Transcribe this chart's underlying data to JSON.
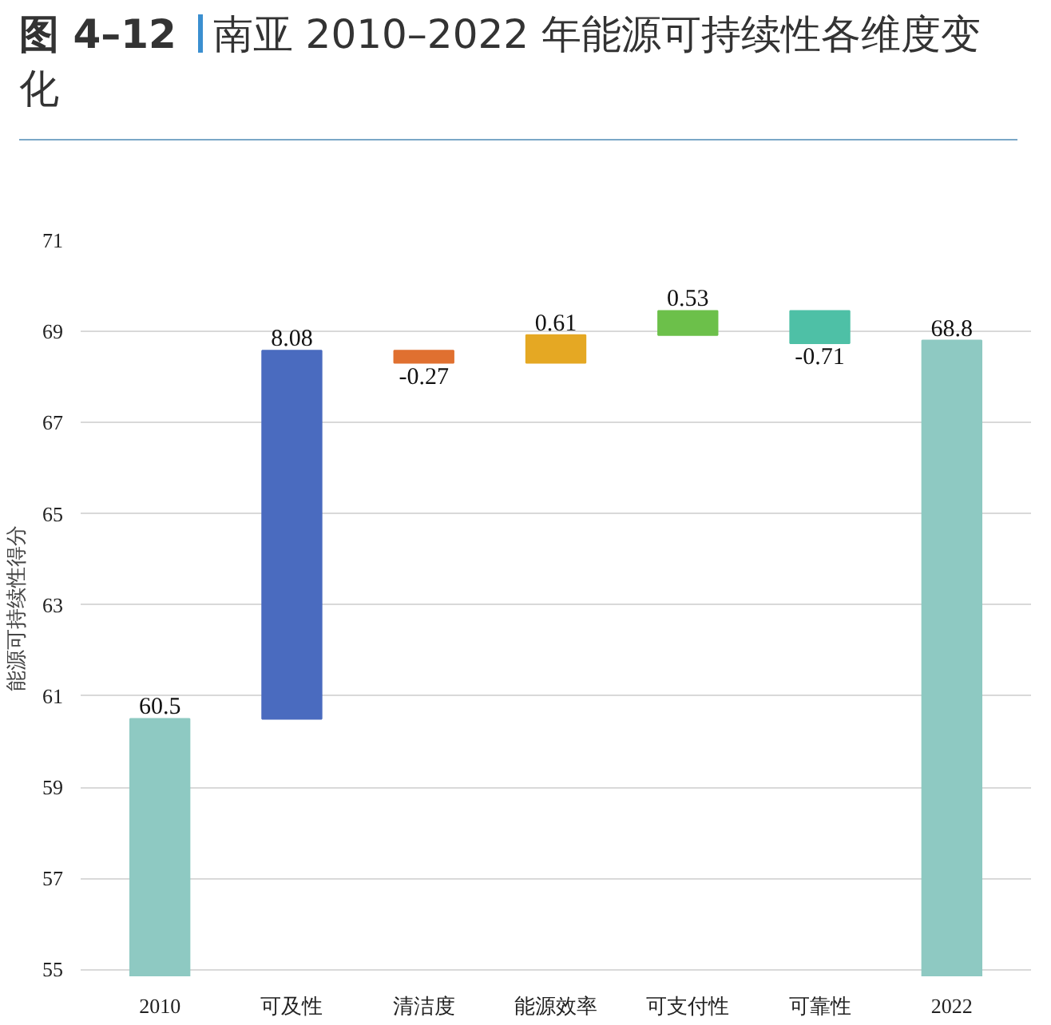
{
  "chart_data": {
    "type": "bar",
    "title": "图 4–12",
    "subtitle": "南亚 2010–2022 年能源可持续性各维度变化",
    "ylabel": "能源可持续性得分",
    "categories": [
      "2010",
      "可及性",
      "清洁度",
      "能源效率",
      "可支付性",
      "可靠性",
      "2022"
    ],
    "values": [
      60.5,
      8.08,
      -0.27,
      0.61,
      0.53,
      -0.71,
      68.8
    ],
    "base": [
      0,
      60.5,
      68.58,
      68.31,
      68.92,
      69.45,
      0
    ],
    "colors": [
      "#8ec9c2",
      "#4a6bbf",
      "#e07030",
      "#e5a823",
      "#6cc04a",
      "#4ec0a6",
      "#8ec9c2"
    ],
    "ylim": [
      54.85,
      71
    ],
    "yticks": [
      55,
      57,
      59,
      61,
      63,
      65,
      67,
      69,
      71
    ],
    "grid": "y",
    "data_labels": true
  }
}
